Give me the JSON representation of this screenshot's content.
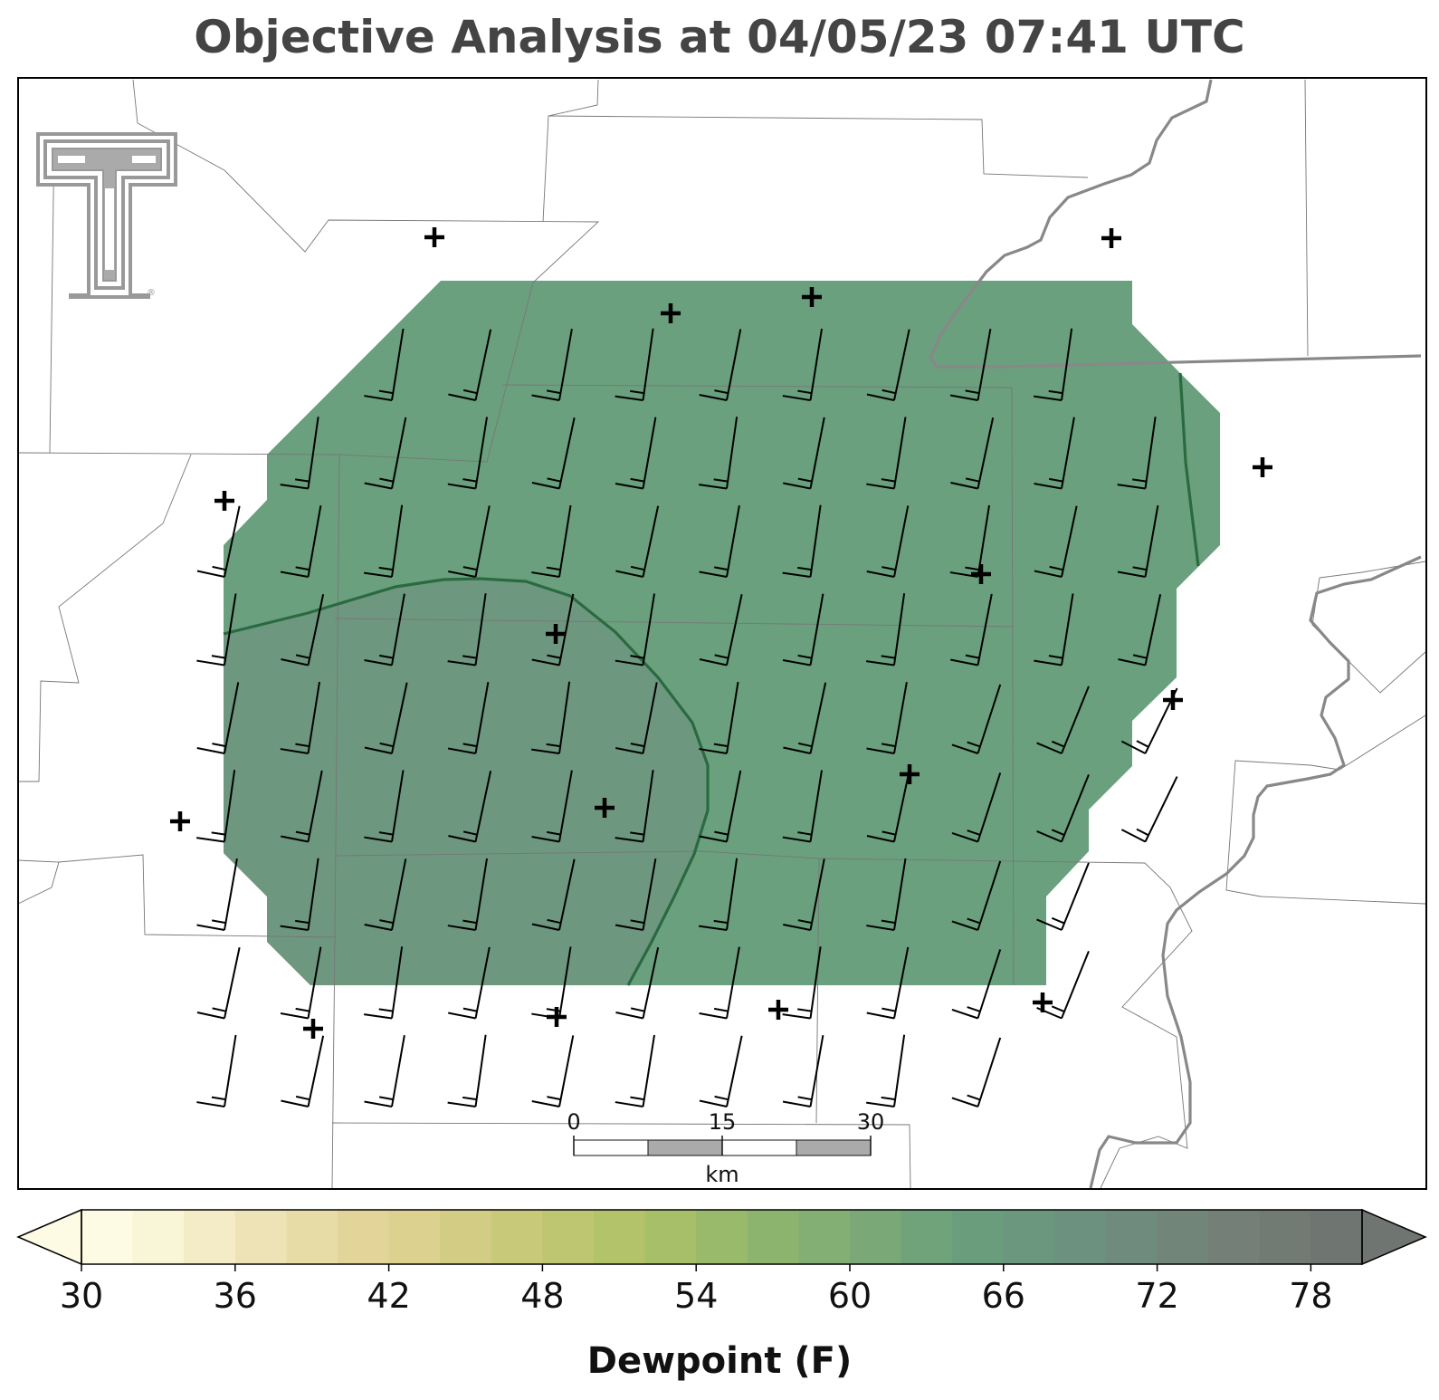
{
  "title": "Objective Analysis at 04/05/23 07:41 UTC",
  "map": {
    "field": "Dewpoint (F)",
    "fill_colors": {
      "low": "#6aa07e",
      "high": "#6e977f"
    },
    "contour_color": "#2a6a40",
    "logo": "texas-tech-double-t-logo",
    "station_marker": "plus-icon",
    "scale_bar": {
      "ticks": [
        "0",
        "15",
        "30"
      ],
      "unit": "km"
    }
  },
  "colorbar": {
    "label": "Dewpoint (F)",
    "ticks": [
      "30",
      "36",
      "42",
      "48",
      "54",
      "60",
      "66",
      "72",
      "78"
    ],
    "min": 30,
    "max": 80,
    "step": 2,
    "extend": "both",
    "colors": [
      "#fdfbe4",
      "#f9f5d7",
      "#f3ecc6",
      "#eee3b6",
      "#e8dca6",
      "#e3d599",
      "#dcd18f",
      "#d3cc84",
      "#c9c97a",
      "#bec671",
      "#b3c369",
      "#a6bf68",
      "#99b96b",
      "#8db46f",
      "#84af74",
      "#7aa977",
      "#70a37a",
      "#6a9d7c",
      "#6a977e",
      "#6c917f",
      "#6f8b7e",
      "#718679",
      "#737f77",
      "#727a74",
      "#6f7570"
    ]
  }
}
